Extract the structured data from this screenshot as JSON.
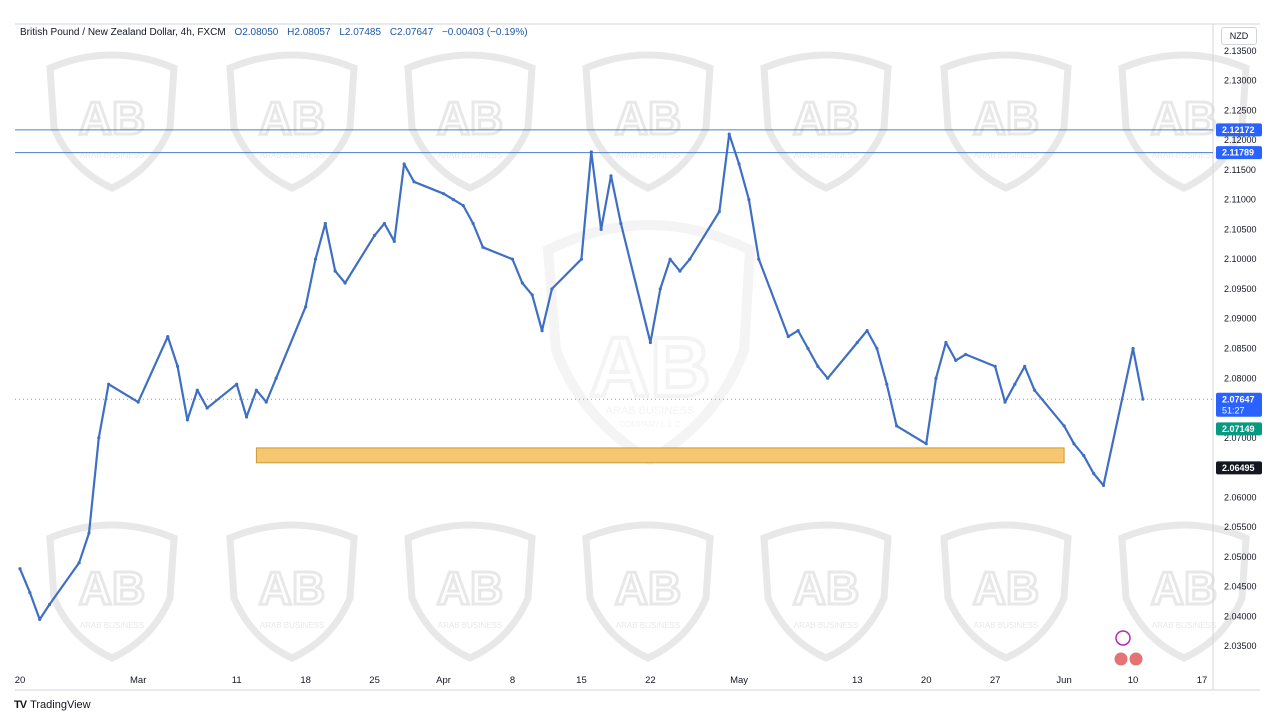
{
  "header": {
    "symbol": "British Pound / New Zealand Dollar, 4h, FXCM",
    "open": "O2.08050",
    "high": "H2.08057",
    "low": "L2.07485",
    "close": "C2.07647",
    "change": "−0.00403 (−0.19%)"
  },
  "currency": "NZD",
  "brand": {
    "name": "TradingView",
    "icon": "TV"
  },
  "colors": {
    "candle": "#3f6fc4",
    "resistance_line": "#4a80c8",
    "support_zone": "#f7c670",
    "support_zone_border": "#c99a3a",
    "trail_up": "#0f9b76",
    "trail_down": "#ee5a5a",
    "dotted_price": "#9598a1",
    "label_blue": "#2962ff",
    "label_green": "#089981",
    "label_black": "#131722",
    "watermark": "#d6d6d6"
  },
  "watermark": {
    "brand_text": "ARAB BUSINESS",
    "sub_text": "COMPANY L.L.C"
  },
  "chart_data": {
    "type": "line",
    "title": "British Pound / New Zealand Dollar, 4h, FXCM",
    "xlabel": "",
    "ylabel": "",
    "x_ticks": [
      "20",
      "Mar",
      "11",
      "18",
      "25",
      "Apr",
      "8",
      "15",
      "22",
      "May",
      "13",
      "20",
      "27",
      "Jun",
      "10",
      "17"
    ],
    "y_ticks": [
      "2.13500",
      "2.13000",
      "2.12500",
      "2.12000",
      "2.11500",
      "2.11000",
      "2.10500",
      "2.10000",
      "2.09500",
      "2.09000",
      "2.08500",
      "2.08000",
      "2.07500",
      "2.07000",
      "2.06500",
      "2.06000",
      "2.05500",
      "2.05000",
      "2.04500",
      "2.04000",
      "2.03500"
    ],
    "ylim": [
      2.031,
      2.1395
    ],
    "price_labels": [
      {
        "text": "2.12172",
        "value": 2.12172,
        "style": "blue"
      },
      {
        "text": "2.11789",
        "value": 2.11789,
        "style": "blue"
      },
      {
        "text": "2.07647",
        "value": 2.07647,
        "style": "blue",
        "sub": "51:27"
      },
      {
        "text": "2.07149",
        "value": 2.07149,
        "style": "green"
      },
      {
        "text": "2.06495",
        "value": 2.06495,
        "style": "black"
      }
    ],
    "horizontal_lines": [
      2.12172,
      2.11789
    ],
    "support_zone": {
      "from_x": "Mar 13",
      "to_x": "Jun 3",
      "top": 2.0683,
      "bottom": 2.0658
    },
    "series": [
      {
        "points": [
          [
            "Feb 20",
            2.048
          ],
          [
            "Feb 21",
            2.044
          ],
          [
            "Feb 22",
            2.0395
          ],
          [
            "Feb 23",
            2.042
          ],
          [
            "Feb 26",
            2.049
          ],
          [
            "Feb 27",
            2.054
          ],
          [
            "Feb 28",
            2.07
          ],
          [
            "Feb 29",
            2.079
          ],
          [
            "Mar 1",
            2.076
          ],
          [
            "Mar 4",
            2.087
          ],
          [
            "Mar 5",
            2.082
          ],
          [
            "Mar 6",
            2.073
          ],
          [
            "Mar 7",
            2.078
          ],
          [
            "Mar 8",
            2.075
          ],
          [
            "Mar 11",
            2.079
          ],
          [
            "Mar 12",
            2.0735
          ],
          [
            "Mar 13",
            2.078
          ],
          [
            "Mar 14",
            2.076
          ],
          [
            "Mar 15",
            2.08
          ],
          [
            "Mar 18",
            2.092
          ],
          [
            "Mar 19",
            2.1
          ],
          [
            "Mar 20",
            2.106
          ],
          [
            "Mar 21",
            2.098
          ],
          [
            "Mar 22",
            2.096
          ],
          [
            "Mar 25",
            2.104
          ],
          [
            "Mar 26",
            2.106
          ],
          [
            "Mar 27",
            2.103
          ],
          [
            "Mar 28",
            2.116
          ],
          [
            "Mar 29",
            2.113
          ],
          [
            "Apr 1",
            2.111
          ],
          [
            "Apr 2",
            2.11
          ],
          [
            "Apr 3",
            2.109
          ],
          [
            "Apr 4",
            2.106
          ],
          [
            "Apr 5",
            2.102
          ],
          [
            "Apr 8",
            2.1
          ],
          [
            "Apr 9",
            2.096
          ],
          [
            "Apr 10",
            2.094
          ],
          [
            "Apr 11",
            2.088
          ],
          [
            "Apr 12",
            2.095
          ],
          [
            "Apr 15",
            2.1
          ],
          [
            "Apr 16",
            2.118
          ],
          [
            "Apr 17",
            2.105
          ],
          [
            "Apr 18",
            2.114
          ],
          [
            "Apr 19",
            2.106
          ],
          [
            "Apr 22",
            2.086
          ],
          [
            "Apr 23",
            2.095
          ],
          [
            "Apr 24",
            2.1
          ],
          [
            "Apr 25",
            2.098
          ],
          [
            "Apr 26",
            2.1
          ],
          [
            "Apr 29",
            2.108
          ],
          [
            "Apr 30",
            2.121
          ],
          [
            "May 1",
            2.116
          ],
          [
            "May 2",
            2.11
          ],
          [
            "May 3",
            2.1
          ],
          [
            "May 6",
            2.087
          ],
          [
            "May 7",
            2.088
          ],
          [
            "May 8",
            2.085
          ],
          [
            "May 9",
            2.082
          ],
          [
            "May 10",
            2.08
          ],
          [
            "May 13",
            2.086
          ],
          [
            "May 14",
            2.088
          ],
          [
            "May 15",
            2.085
          ],
          [
            "May 16",
            2.079
          ],
          [
            "May 17",
            2.072
          ],
          [
            "May 20",
            2.069
          ],
          [
            "May 21",
            2.08
          ],
          [
            "May 22",
            2.086
          ],
          [
            "May 23",
            2.083
          ],
          [
            "May 24",
            2.084
          ],
          [
            "May 27",
            2.082
          ],
          [
            "May 28",
            2.076
          ],
          [
            "May 29",
            2.079
          ],
          [
            "May 30",
            2.082
          ],
          [
            "May 31",
            2.078
          ],
          [
            "Jun 3",
            2.072
          ],
          [
            "Jun 4",
            2.069
          ],
          [
            "Jun 5",
            2.067
          ],
          [
            "Jun 6",
            2.064
          ],
          [
            "Jun 7",
            2.062
          ],
          [
            "Jun 10",
            2.085
          ],
          [
            "Jun 11",
            2.0765
          ]
        ]
      }
    ]
  }
}
